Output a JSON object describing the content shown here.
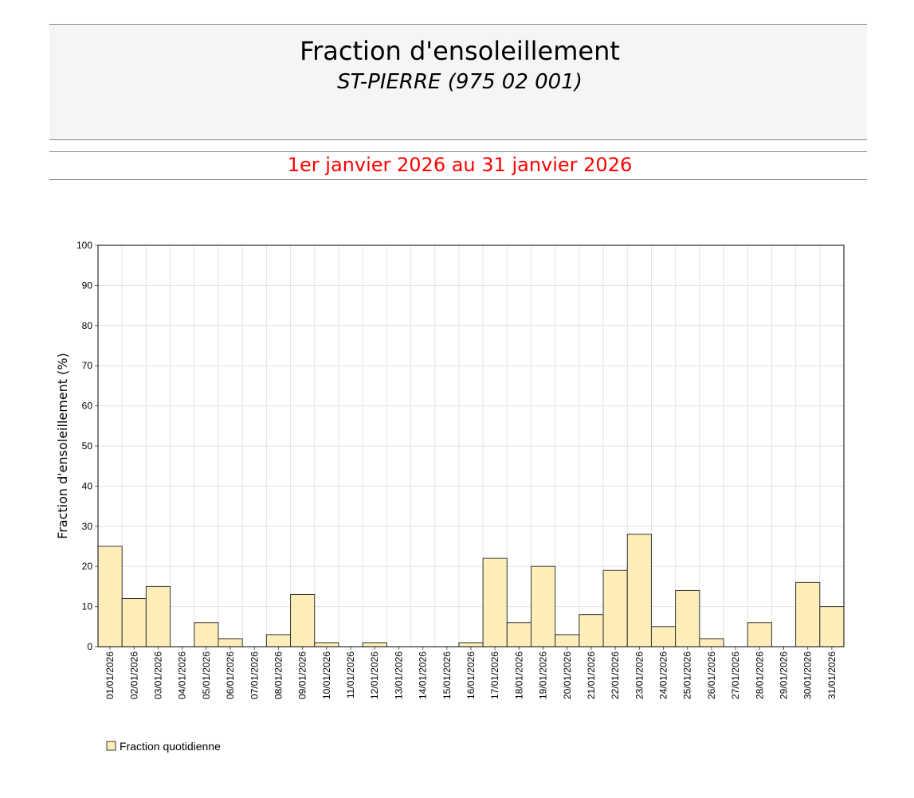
{
  "chart_data": {
    "type": "bar",
    "title": "Fraction d'ensoleillement",
    "subtitle": "ST-PIERRE (975 02 001)",
    "period": "1er janvier 2026 au 31 janvier 2026",
    "y_label": "Fraction d'ensoleillement (%)",
    "categories": [
      "01/01/2026",
      "02/01/2026",
      "03/01/2026",
      "04/01/2026",
      "05/01/2026",
      "06/01/2026",
      "07/01/2026",
      "08/01/2026",
      "09/01/2026",
      "10/01/2026",
      "11/01/2026",
      "12/01/2026",
      "13/01/2026",
      "14/01/2026",
      "15/01/2026",
      "16/01/2026",
      "17/01/2026",
      "18/01/2026",
      "19/01/2026",
      "20/01/2026",
      "21/01/2026",
      "22/01/2026",
      "23/01/2026",
      "24/01/2026",
      "25/01/2026",
      "26/01/2026",
      "27/01/2026",
      "28/01/2026",
      "29/01/2026",
      "30/01/2026",
      "31/01/2026"
    ],
    "series": [
      {
        "name": "Fraction quotidienne",
        "color": "#fdeeb9",
        "values": [
          25,
          12,
          15,
          0,
          6,
          2,
          0,
          3,
          13,
          1,
          0,
          1,
          0,
          0,
          0,
          1,
          22,
          6,
          20,
          3,
          8,
          19,
          28,
          5,
          14,
          2,
          0,
          6,
          0,
          16,
          10
        ]
      }
    ],
    "ylim": [
      0,
      100
    ],
    "yticks": [
      0,
      10,
      20,
      30,
      40,
      50,
      60,
      70,
      80,
      90,
      100
    ],
    "grid": true
  }
}
